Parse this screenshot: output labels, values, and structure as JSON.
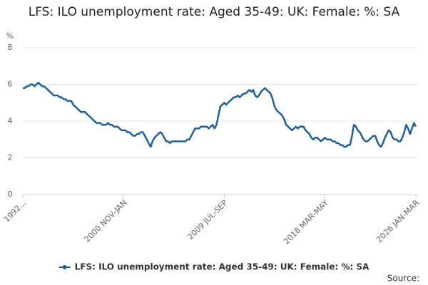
{
  "chart_data": {
    "type": "line",
    "title": "LFS: ILO unemployment rate: Aged 35-49: UK: Female: %: SA",
    "y_label": "%",
    "source": "Source:",
    "ylim": [
      0,
      8
    ],
    "yticks": [
      0,
      2,
      4,
      6,
      8
    ],
    "grid": true,
    "categories": [
      "1992...",
      null,
      null,
      null,
      null,
      null,
      null,
      null,
      null,
      null,
      null,
      null,
      null,
      null,
      null,
      null,
      null,
      null,
      null,
      null,
      null,
      null,
      null,
      null,
      null,
      null,
      null,
      null,
      null,
      null,
      null,
      null,
      null,
      null,
      null,
      null,
      null,
      null,
      null,
      null,
      null,
      null,
      null,
      null,
      null,
      null,
      null,
      null,
      null,
      null,
      null,
      null,
      "2000 NOV-JAN",
      null,
      null,
      null,
      null,
      null,
      null,
      null,
      null,
      null,
      null,
      null,
      null,
      null,
      null,
      null,
      null,
      null,
      null,
      null,
      null,
      null,
      null,
      null,
      null,
      null,
      null,
      null,
      null,
      null,
      null,
      null,
      null,
      null,
      null,
      null,
      null,
      null,
      null,
      null,
      null,
      null,
      null,
      null,
      null,
      null,
      null,
      null,
      null,
      null,
      null,
      null,
      "2009 JUL-SEP",
      null,
      null,
      null,
      null,
      null,
      null,
      null,
      null,
      null,
      null,
      null,
      null,
      null,
      null,
      null,
      null,
      null,
      null,
      null,
      null,
      null,
      null,
      null,
      null,
      null,
      null,
      null,
      null,
      null,
      null,
      null,
      null,
      null,
      null,
      null,
      null,
      null,
      null,
      null,
      null,
      null,
      null,
      null,
      null,
      null,
      null,
      null,
      null,
      null,
      null,
      null,
      "2018 MAR-MAY",
      null,
      null,
      null,
      null,
      null,
      null,
      null,
      null,
      null,
      null,
      null,
      null,
      null,
      null,
      null,
      null,
      null,
      null,
      null,
      null,
      null,
      null,
      null,
      null,
      null,
      null,
      null,
      null,
      null,
      null,
      null,
      null,
      null,
      null,
      null,
      null,
      null,
      null,
      null,
      null,
      null,
      null,
      null,
      null,
      null,
      null,
      "2026 JAN-MAR"
    ],
    "series": [
      {
        "name": "LFS: ILO unemployment rate: Aged 35-49: UK: Female: %: SA",
        "color": "#206095",
        "values": [
          5.8,
          5.8,
          5.9,
          5.9,
          6.0,
          6.0,
          5.9,
          6.0,
          6.1,
          6.0,
          5.9,
          5.9,
          5.8,
          5.7,
          5.6,
          5.5,
          5.4,
          5.4,
          5.4,
          5.3,
          5.3,
          5.2,
          5.2,
          5.1,
          5.1,
          5.1,
          4.9,
          4.8,
          4.7,
          4.6,
          4.5,
          4.5,
          4.5,
          4.4,
          4.3,
          4.2,
          4.1,
          4.0,
          3.9,
          3.9,
          3.9,
          3.8,
          3.8,
          3.8,
          3.9,
          3.8,
          3.8,
          3.7,
          3.7,
          3.7,
          3.6,
          3.5,
          3.5,
          3.5,
          3.4,
          3.4,
          3.3,
          3.2,
          3.2,
          3.3,
          3.3,
          3.4,
          3.4,
          3.2,
          3.0,
          2.8,
          2.6,
          2.9,
          3.1,
          3.2,
          3.3,
          3.4,
          3.3,
          3.1,
          2.9,
          2.9,
          2.8,
          2.9,
          2.9,
          2.9,
          2.9,
          2.9,
          2.9,
          2.9,
          2.9,
          3.0,
          3.0,
          3.2,
          3.4,
          3.6,
          3.6,
          3.6,
          3.7,
          3.7,
          3.7,
          3.7,
          3.6,
          3.7,
          3.8,
          3.6,
          3.8,
          4.3,
          4.8,
          4.9,
          5.0,
          4.9,
          5.0,
          5.1,
          5.2,
          5.3,
          5.3,
          5.4,
          5.3,
          5.4,
          5.5,
          5.5,
          5.6,
          5.7,
          5.6,
          5.7,
          5.4,
          5.3,
          5.4,
          5.6,
          5.7,
          5.8,
          5.7,
          5.6,
          5.5,
          5.2,
          4.8,
          4.6,
          4.5,
          4.4,
          4.3,
          4.1,
          3.8,
          3.7,
          3.6,
          3.5,
          3.6,
          3.7,
          3.6,
          3.7,
          3.7,
          3.7,
          3.5,
          3.4,
          3.3,
          3.1,
          3.0,
          3.1,
          3.1,
          3.0,
          2.9,
          3.0,
          3.1,
          3.0,
          3.0,
          3.0,
          2.9,
          2.9,
          2.8,
          2.8,
          2.7,
          2.7,
          2.6,
          2.6,
          2.7,
          2.7,
          3.2,
          3.8,
          3.7,
          3.5,
          3.4,
          3.2,
          3.0,
          2.9,
          2.9,
          3.0,
          3.1,
          3.2,
          3.2,
          2.9,
          2.7,
          2.6,
          2.8,
          3.1,
          3.3,
          3.5,
          3.4,
          3.1,
          3.0,
          3.0,
          2.9,
          2.9,
          3.1,
          3.4,
          3.8,
          3.6,
          3.3,
          3.6,
          3.9,
          3.7
        ]
      }
    ]
  }
}
